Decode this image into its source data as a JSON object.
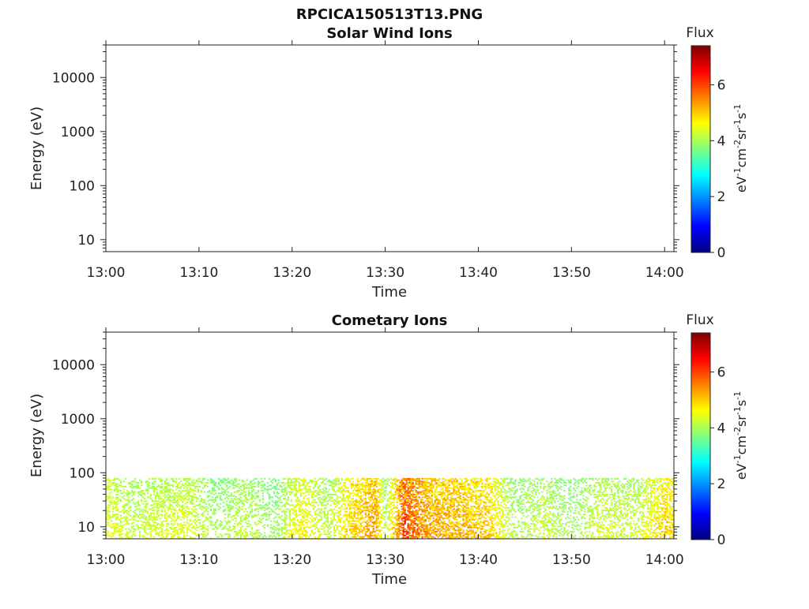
{
  "figure": {
    "title": "RPCICA150513T13.PNG"
  },
  "colorscale": {
    "stops": [
      "#00007f",
      "#0000ff",
      "#007fff",
      "#00ffff",
      "#7fff7f",
      "#ffff00",
      "#ff7f00",
      "#ff0000",
      "#7f0000"
    ],
    "min": 0,
    "max": 7.4,
    "ticks": [
      "0",
      "2",
      "4",
      "6"
    ],
    "tick_values": [
      0,
      2,
      4,
      6
    ]
  },
  "chart_data": [
    {
      "type": "heatmap",
      "title": "Solar Wind Ions",
      "xlabel": "Time",
      "ylabel": "Energy (eV)",
      "y_scale": "log",
      "ylim": [
        6,
        40000
      ],
      "xlim": [
        "13:00",
        "14:01"
      ],
      "x_ticks": [
        "13:00",
        "13:10",
        "13:20",
        "13:30",
        "13:40",
        "13:50",
        "14:00"
      ],
      "y_ticks": [
        "10",
        "100",
        "1000",
        "10000"
      ],
      "colorbar": {
        "label": "Flux",
        "units": "eV-1cm-2sr-1s-1",
        "range": [
          0,
          7.4
        ]
      },
      "data": "no data (empty panel)"
    },
    {
      "type": "heatmap",
      "title": "Cometary Ions",
      "xlabel": "Time",
      "ylabel": "Energy (eV)",
      "y_scale": "log",
      "ylim": [
        6,
        40000
      ],
      "xlim": [
        "13:00",
        "14:01"
      ],
      "x_ticks": [
        "13:00",
        "13:10",
        "13:20",
        "13:30",
        "13:40",
        "13:50",
        "14:00"
      ],
      "y_ticks": [
        "10",
        "100",
        "1000",
        "10000"
      ],
      "colorbar": {
        "label": "Flux",
        "units": "eV-1cm-2sr-1s-1",
        "range": [
          0,
          7.4
        ]
      },
      "energy_range": [
        6,
        80
      ],
      "background_flux": 3.5,
      "intensity_by_time": [
        {
          "time": "13:00",
          "flux": 4.6
        },
        {
          "time": "13:03",
          "flux": 4.2
        },
        {
          "time": "13:06",
          "flux": 4.4
        },
        {
          "time": "13:09",
          "flux": 4.5
        },
        {
          "time": "13:12",
          "flux": 3.9
        },
        {
          "time": "13:15",
          "flux": 4.3
        },
        {
          "time": "13:18",
          "flux": 3.8
        },
        {
          "time": "13:21",
          "flux": 4.8
        },
        {
          "time": "13:24",
          "flux": 4.2
        },
        {
          "time": "13:26",
          "flux": 5.0
        },
        {
          "time": "13:29",
          "flux": 5.6
        },
        {
          "time": "13:30",
          "flux": 4.1
        },
        {
          "time": "13:32",
          "flux": 6.3
        },
        {
          "time": "13:35",
          "flux": 5.5
        },
        {
          "time": "13:38",
          "flux": 5.4
        },
        {
          "time": "13:41",
          "flux": 5.2
        },
        {
          "time": "13:44",
          "flux": 4.0
        },
        {
          "time": "13:47",
          "flux": 4.3
        },
        {
          "time": "13:50",
          "flux": 3.9
        },
        {
          "time": "13:53",
          "flux": 4.4
        },
        {
          "time": "13:57",
          "flux": 4.3
        },
        {
          "time": "14:00",
          "flux": 5.1
        }
      ]
    }
  ]
}
